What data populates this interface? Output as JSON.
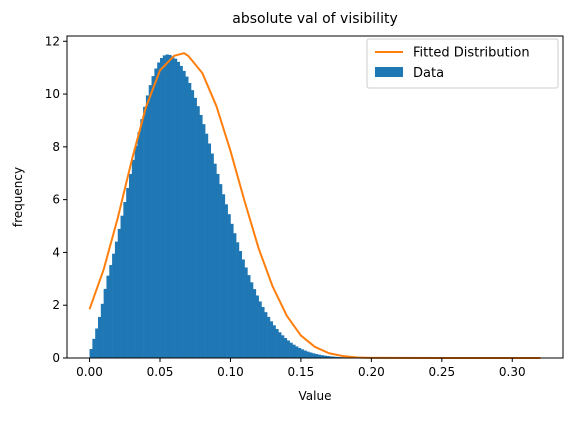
{
  "chart_data": {
    "type": "histogram",
    "title": "absolute val of visibility",
    "xlabel": "Value",
    "ylabel": "frequency",
    "xlim": [
      -0.016,
      0.336
    ],
    "ylim": [
      0,
      12.2
    ],
    "xticks": [
      "0.00",
      "0.05",
      "0.10",
      "0.15",
      "0.20",
      "0.25",
      "0.30"
    ],
    "xtick_values": [
      0.0,
      0.05,
      0.1,
      0.15,
      0.2,
      0.25,
      0.3
    ],
    "yticks": [
      "0",
      "2",
      "4",
      "6",
      "8",
      "10",
      "12"
    ],
    "ytick_values": [
      0,
      2,
      4,
      6,
      8,
      10,
      12
    ],
    "grid": false,
    "legend_position": "top-right",
    "histogram": {
      "name": "Data",
      "color": "#1f77b4",
      "bin_width": 0.002,
      "bin_start": 0.0,
      "bin_end": 0.32,
      "peak_frequency": 11.5,
      "peak_at": 0.055
    },
    "fitted_curve": {
      "name": "Fitted Distribution",
      "color": "#ff7f0e",
      "x": [
        0.0,
        0.01,
        0.02,
        0.03,
        0.04,
        0.05,
        0.06,
        0.067,
        0.07,
        0.08,
        0.09,
        0.1,
        0.11,
        0.12,
        0.13,
        0.14,
        0.15,
        0.16,
        0.17,
        0.18,
        0.19,
        0.2,
        0.25,
        0.32
      ],
      "y": [
        1.85,
        3.35,
        5.3,
        7.5,
        9.5,
        10.9,
        11.45,
        11.55,
        11.45,
        10.8,
        9.55,
        7.85,
        5.95,
        4.15,
        2.7,
        1.6,
        0.85,
        0.42,
        0.18,
        0.07,
        0.02,
        0.005,
        0.0,
        0.0
      ]
    }
  }
}
